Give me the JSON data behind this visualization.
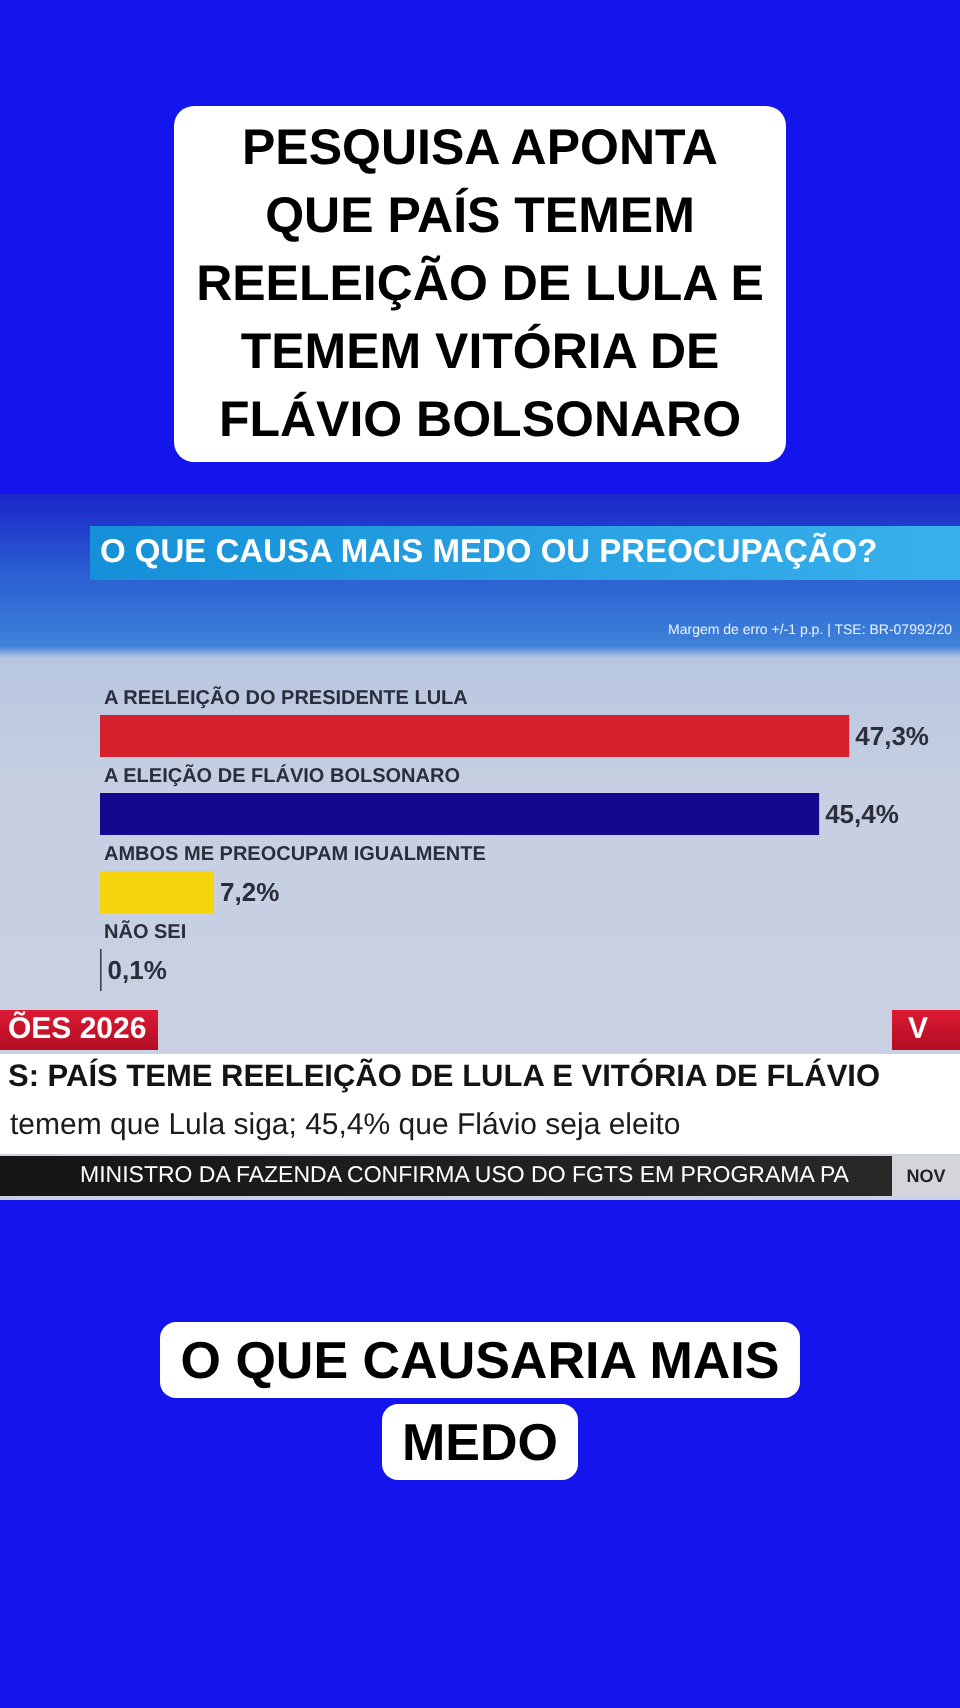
{
  "chart_data": {
    "type": "bar",
    "orientation": "horizontal",
    "title": "PESQUISA APONTA QUE PAÍS TEMEM REELEIÇÃO DE LULA E TEMEM VITÓRIA DE FLÁVIO BOLSONARO",
    "subtitle": "O QUE CAUSA MAIS MEDO OU PREOCUPAÇÃO?",
    "categories": [
      "A REELEIÇÃO DO PRESIDENTE LULA",
      "A ELEIÇÃO DE FLÁVIO BOLSONARO",
      "AMBOS ME PREOCUPAM IGUALMENTE",
      "NÃO SEI"
    ],
    "values": [
      47.3,
      45.4,
      7.2,
      0.1
    ],
    "colors": [
      "#d7202d",
      "#14088e",
      "#f6d40b",
      "#3b3f55"
    ],
    "value_labels": [
      "47,3%",
      "45,4%",
      "7,2%",
      "0,1%"
    ],
    "tick_labels": "y",
    "annotations": [
      "Margem de erro +/-1 p.p. | TSE: BR-07992/20",
      "ÕES 2026",
      "V",
      "S: PAÍS TEME REELEIÇÃO DE LULA E VITÓRIA DE FLÁVIO",
      "temem que Lula siga; 45,4% que Flávio seja eleito",
      "MINISTRO DA FAZENDA CONFIRMA USO DO FGTS EM PROGRAMA PA",
      "NOV",
      "O QUE CAUSARIA MAIS MEDO"
    ]
  }
}
